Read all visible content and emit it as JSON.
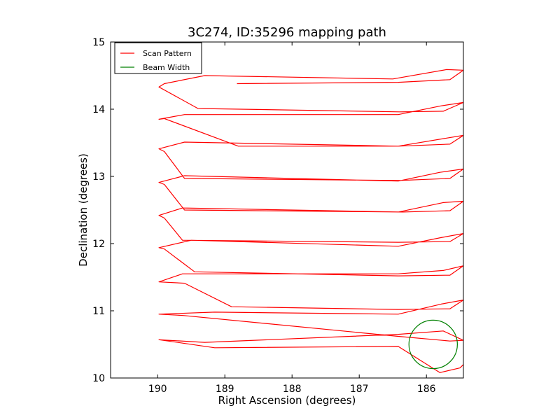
{
  "chart_data": {
    "type": "line",
    "title": "3C274, ID:35296 mapping path",
    "xlabel": "Right Ascension (degrees)",
    "ylabel": "Declination (degrees)",
    "xlim": [
      190.7,
      185.45
    ],
    "ylim": [
      10,
      15
    ],
    "x_inverted": true,
    "xticks": [
      190,
      189,
      188,
      187,
      186
    ],
    "yticks": [
      10,
      11,
      12,
      13,
      14,
      15
    ],
    "grid": false,
    "legend_position": "top-left",
    "series": [
      {
        "name": "Scan Pattern",
        "color": "#ff0000",
        "x": [
          188.82,
          186.42,
          185.65,
          185.45,
          185.7,
          186.5,
          189.3,
          189.9,
          189.98,
          189.4,
          186.4,
          185.75,
          185.45,
          185.78,
          186.42,
          189.6,
          189.98,
          189.9,
          188.8,
          186.42,
          185.65,
          185.45,
          185.7,
          186.42,
          189.6,
          189.98,
          189.9,
          189.6,
          186.4,
          185.65,
          185.45,
          185.8,
          186.42,
          189.6,
          189.98,
          189.9,
          189.6,
          186.35,
          185.65,
          185.45,
          185.75,
          186.42,
          189.63,
          189.98,
          189.9,
          189.63,
          186.42,
          185.65,
          185.45,
          185.78,
          186.42,
          189.5,
          189.98,
          189.9,
          189.45,
          186.42,
          185.65,
          185.45,
          185.75,
          186.42,
          189.63,
          189.98,
          189.6,
          188.9,
          186.42,
          185.65,
          185.45,
          185.78,
          186.42,
          189.15,
          189.98,
          189.62,
          186.42,
          185.65,
          185.45,
          185.75,
          186.42,
          189.3,
          189.98,
          189.15,
          186.42,
          185.8,
          185.5,
          185.45
        ],
        "y": [
          14.38,
          14.4,
          14.44,
          14.58,
          14.59,
          14.45,
          14.5,
          14.38,
          14.33,
          14.01,
          13.96,
          13.97,
          14.1,
          14.05,
          13.92,
          13.92,
          13.85,
          13.86,
          13.45,
          13.45,
          13.48,
          13.61,
          13.57,
          13.45,
          13.51,
          13.41,
          13.37,
          12.97,
          12.94,
          12.97,
          13.11,
          13.06,
          12.93,
          13.01,
          12.91,
          12.88,
          12.5,
          12.47,
          12.49,
          12.63,
          12.61,
          12.47,
          12.53,
          12.42,
          12.38,
          12.05,
          12.02,
          12.03,
          12.15,
          12.09,
          11.96,
          12.05,
          11.94,
          11.92,
          11.58,
          11.52,
          11.53,
          11.67,
          11.6,
          11.55,
          11.55,
          11.43,
          11.41,
          11.06,
          11.02,
          11.03,
          11.16,
          11.1,
          10.95,
          10.98,
          10.95,
          10.93,
          10.62,
          10.55,
          10.56,
          10.7,
          10.65,
          10.53,
          10.57,
          10.45,
          10.47,
          10.08,
          10.15,
          10.2
        ]
      },
      {
        "name": "Beam Width",
        "color": "#008000",
        "shape": "circle",
        "center": [
          185.9,
          10.5
        ],
        "radius_y": 0.36
      }
    ]
  }
}
